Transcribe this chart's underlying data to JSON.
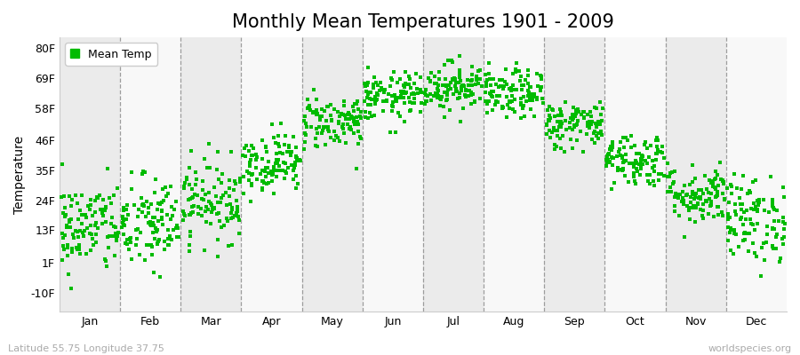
{
  "title": "Monthly Mean Temperatures 1901 - 2009",
  "ylabel": "Temperature",
  "subtitle_left": "Latitude 55.75 Longitude 37.75",
  "subtitle_right": "worldspecies.org",
  "legend_label": "Mean Temp",
  "dot_color": "#00bb00",
  "background_color": "#ffffff",
  "band_color_odd": "#ebebeb",
  "band_color_even": "#f8f8f8",
  "ytick_labels": [
    "-10F",
    "1F",
    "13F",
    "24F",
    "35F",
    "46F",
    "58F",
    "69F",
    "80F"
  ],
  "ytick_values": [
    -10,
    1,
    13,
    24,
    35,
    46,
    58,
    69,
    80
  ],
  "ylim": [
    -17,
    84
  ],
  "xlim": [
    0,
    12
  ],
  "months": [
    "Jan",
    "Feb",
    "Mar",
    "Apr",
    "May",
    "Jun",
    "Jul",
    "Aug",
    "Sep",
    "Oct",
    "Nov",
    "Dec"
  ],
  "month_means_F": [
    14.0,
    15.0,
    24.0,
    38.0,
    53.0,
    62.0,
    66.0,
    63.0,
    52.0,
    39.0,
    26.0,
    17.0
  ],
  "month_stds_F": [
    8.5,
    9.0,
    7.5,
    5.5,
    5.0,
    4.5,
    4.5,
    4.5,
    4.5,
    5.0,
    5.5,
    8.0
  ],
  "num_years": 109,
  "seed": 42,
  "dot_size": 6,
  "title_fontsize": 15,
  "axis_fontsize": 10,
  "tick_fontsize": 9,
  "legend_fontsize": 9,
  "footer_fontsize": 8
}
